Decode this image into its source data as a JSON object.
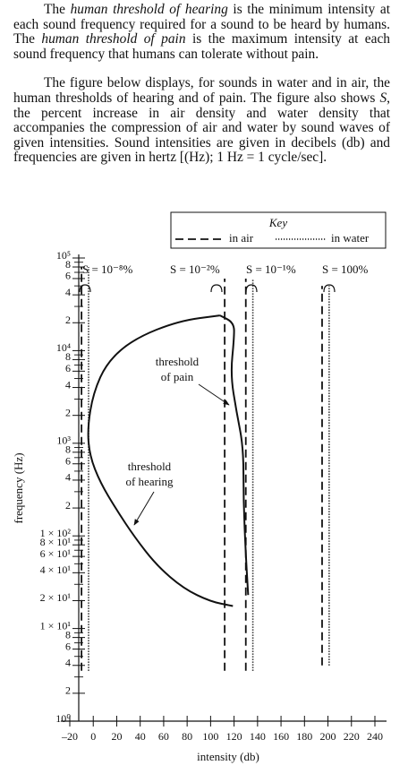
{
  "passage": {
    "paragraphs": [
      [
        {
          "text": "The "
        },
        {
          "text": "human threshold of hearing",
          "italic": true
        },
        {
          "text": " is the minimum intensity at each sound frequency required for a sound to be heard by humans. The "
        },
        {
          "text": "human threshold of pain",
          "italic": true
        },
        {
          "text": " is the maximum intensity at each sound frequency that humans can tolerate without pain."
        }
      ],
      [
        {
          "text": "The figure below displays, for sounds in water and in air, the human thresholds of hearing and of pain. The figure also shows "
        },
        {
          "text": "S",
          "italic": true
        },
        {
          "text": ", the percent increase in air density and water density that accompanies the compression of air and water by sound waves of given intensities. Sound intensities are given in decibels (db) and frequencies are given in hertz [(Hz); 1 Hz = 1 cycle/sec]."
        }
      ]
    ]
  },
  "chart_data": {
    "type": "line",
    "xlabel": "intensity (db)",
    "ylabel": "frequency (Hz)",
    "xlim": [
      -20,
      240
    ],
    "ylim": [
      1,
      100000
    ],
    "ylog": true,
    "xticks": [
      {
        "value": -20,
        "label": "–20"
      },
      0,
      20,
      40,
      60,
      80,
      100,
      120,
      140,
      160,
      180,
      200,
      220,
      240
    ],
    "yticks": [
      {
        "value": 1,
        "label": "10⁰"
      },
      2,
      4,
      6,
      8,
      {
        "value": 10,
        "label": "1 × 10¹"
      },
      {
        "value": 20,
        "label": "2 × 10¹"
      },
      {
        "value": 40,
        "label": "4 × 10¹"
      },
      {
        "value": 60,
        "label": "6 × 10¹"
      },
      {
        "value": 80,
        "label": "8 × 10¹"
      },
      {
        "value": 100,
        "label": "1 × 10²"
      },
      {
        "value": 200,
        "label": "2"
      },
      {
        "value": 400,
        "label": "4"
      },
      {
        "value": 600,
        "label": "6"
      },
      {
        "value": 800,
        "label": "8"
      },
      {
        "value": 1000,
        "label": "10³"
      },
      {
        "value": 2000,
        "label": "2"
      },
      {
        "value": 4000,
        "label": "4"
      },
      {
        "value": 6000,
        "label": "6"
      },
      {
        "value": 8000,
        "label": "8"
      },
      {
        "value": 10000,
        "label": "10⁴"
      },
      {
        "value": 20000,
        "label": "2"
      },
      {
        "value": 40000,
        "label": "4"
      },
      {
        "value": 60000,
        "label": "6"
      },
      {
        "value": 80000,
        "label": "8"
      },
      {
        "value": 100000,
        "label": "10⁵"
      }
    ],
    "yminor": [
      3,
      5,
      7,
      9,
      30,
      50,
      70,
      90,
      300,
      500,
      700,
      900,
      3000,
      5000,
      7000,
      9000,
      30000,
      50000,
      70000,
      90000
    ],
    "key": {
      "title": "Key",
      "items": [
        {
          "label": "in air",
          "style": "dashed"
        },
        {
          "label": "in water",
          "style": "dotted"
        }
      ]
    },
    "levels": [
      {
        "label": "S = 10⁻⁸%",
        "air": -10,
        "water": -4,
        "y": [
          3.5,
          80000
        ]
      },
      {
        "label": "S = 10⁻²%",
        "air": 112,
        "water": null,
        "y": [
          3.5,
          60000
        ]
      },
      {
        "label": "S = 10⁻¹%",
        "air": 130,
        "water": 136,
        "y": [
          3.5,
          60000
        ]
      },
      {
        "label": "S = 100%",
        "air": 195,
        "water": 201,
        "y": [
          4,
          50000
        ]
      }
    ],
    "curves": [
      {
        "label": [
          "threshold",
          "of hearing"
        ],
        "x": [
          108,
          73,
          35,
          12,
          0,
          -5,
          -3,
          6,
          20,
          35,
          54,
          77,
          100,
          119
        ],
        "y": [
          24000,
          21000,
          13500,
          7600,
          3500,
          1440,
          730,
          375,
          190,
          98,
          48,
          27,
          19.5,
          17.5
        ]
      },
      {
        "label": [
          "threshold",
          "of pain"
        ],
        "x": [
          108,
          120,
          120,
          117,
          122,
          128,
          128,
          130,
          132
        ],
        "y": [
          24000,
          20000,
          13500,
          5500,
          2200,
          900,
          240,
          62,
          23
        ]
      }
    ]
  }
}
